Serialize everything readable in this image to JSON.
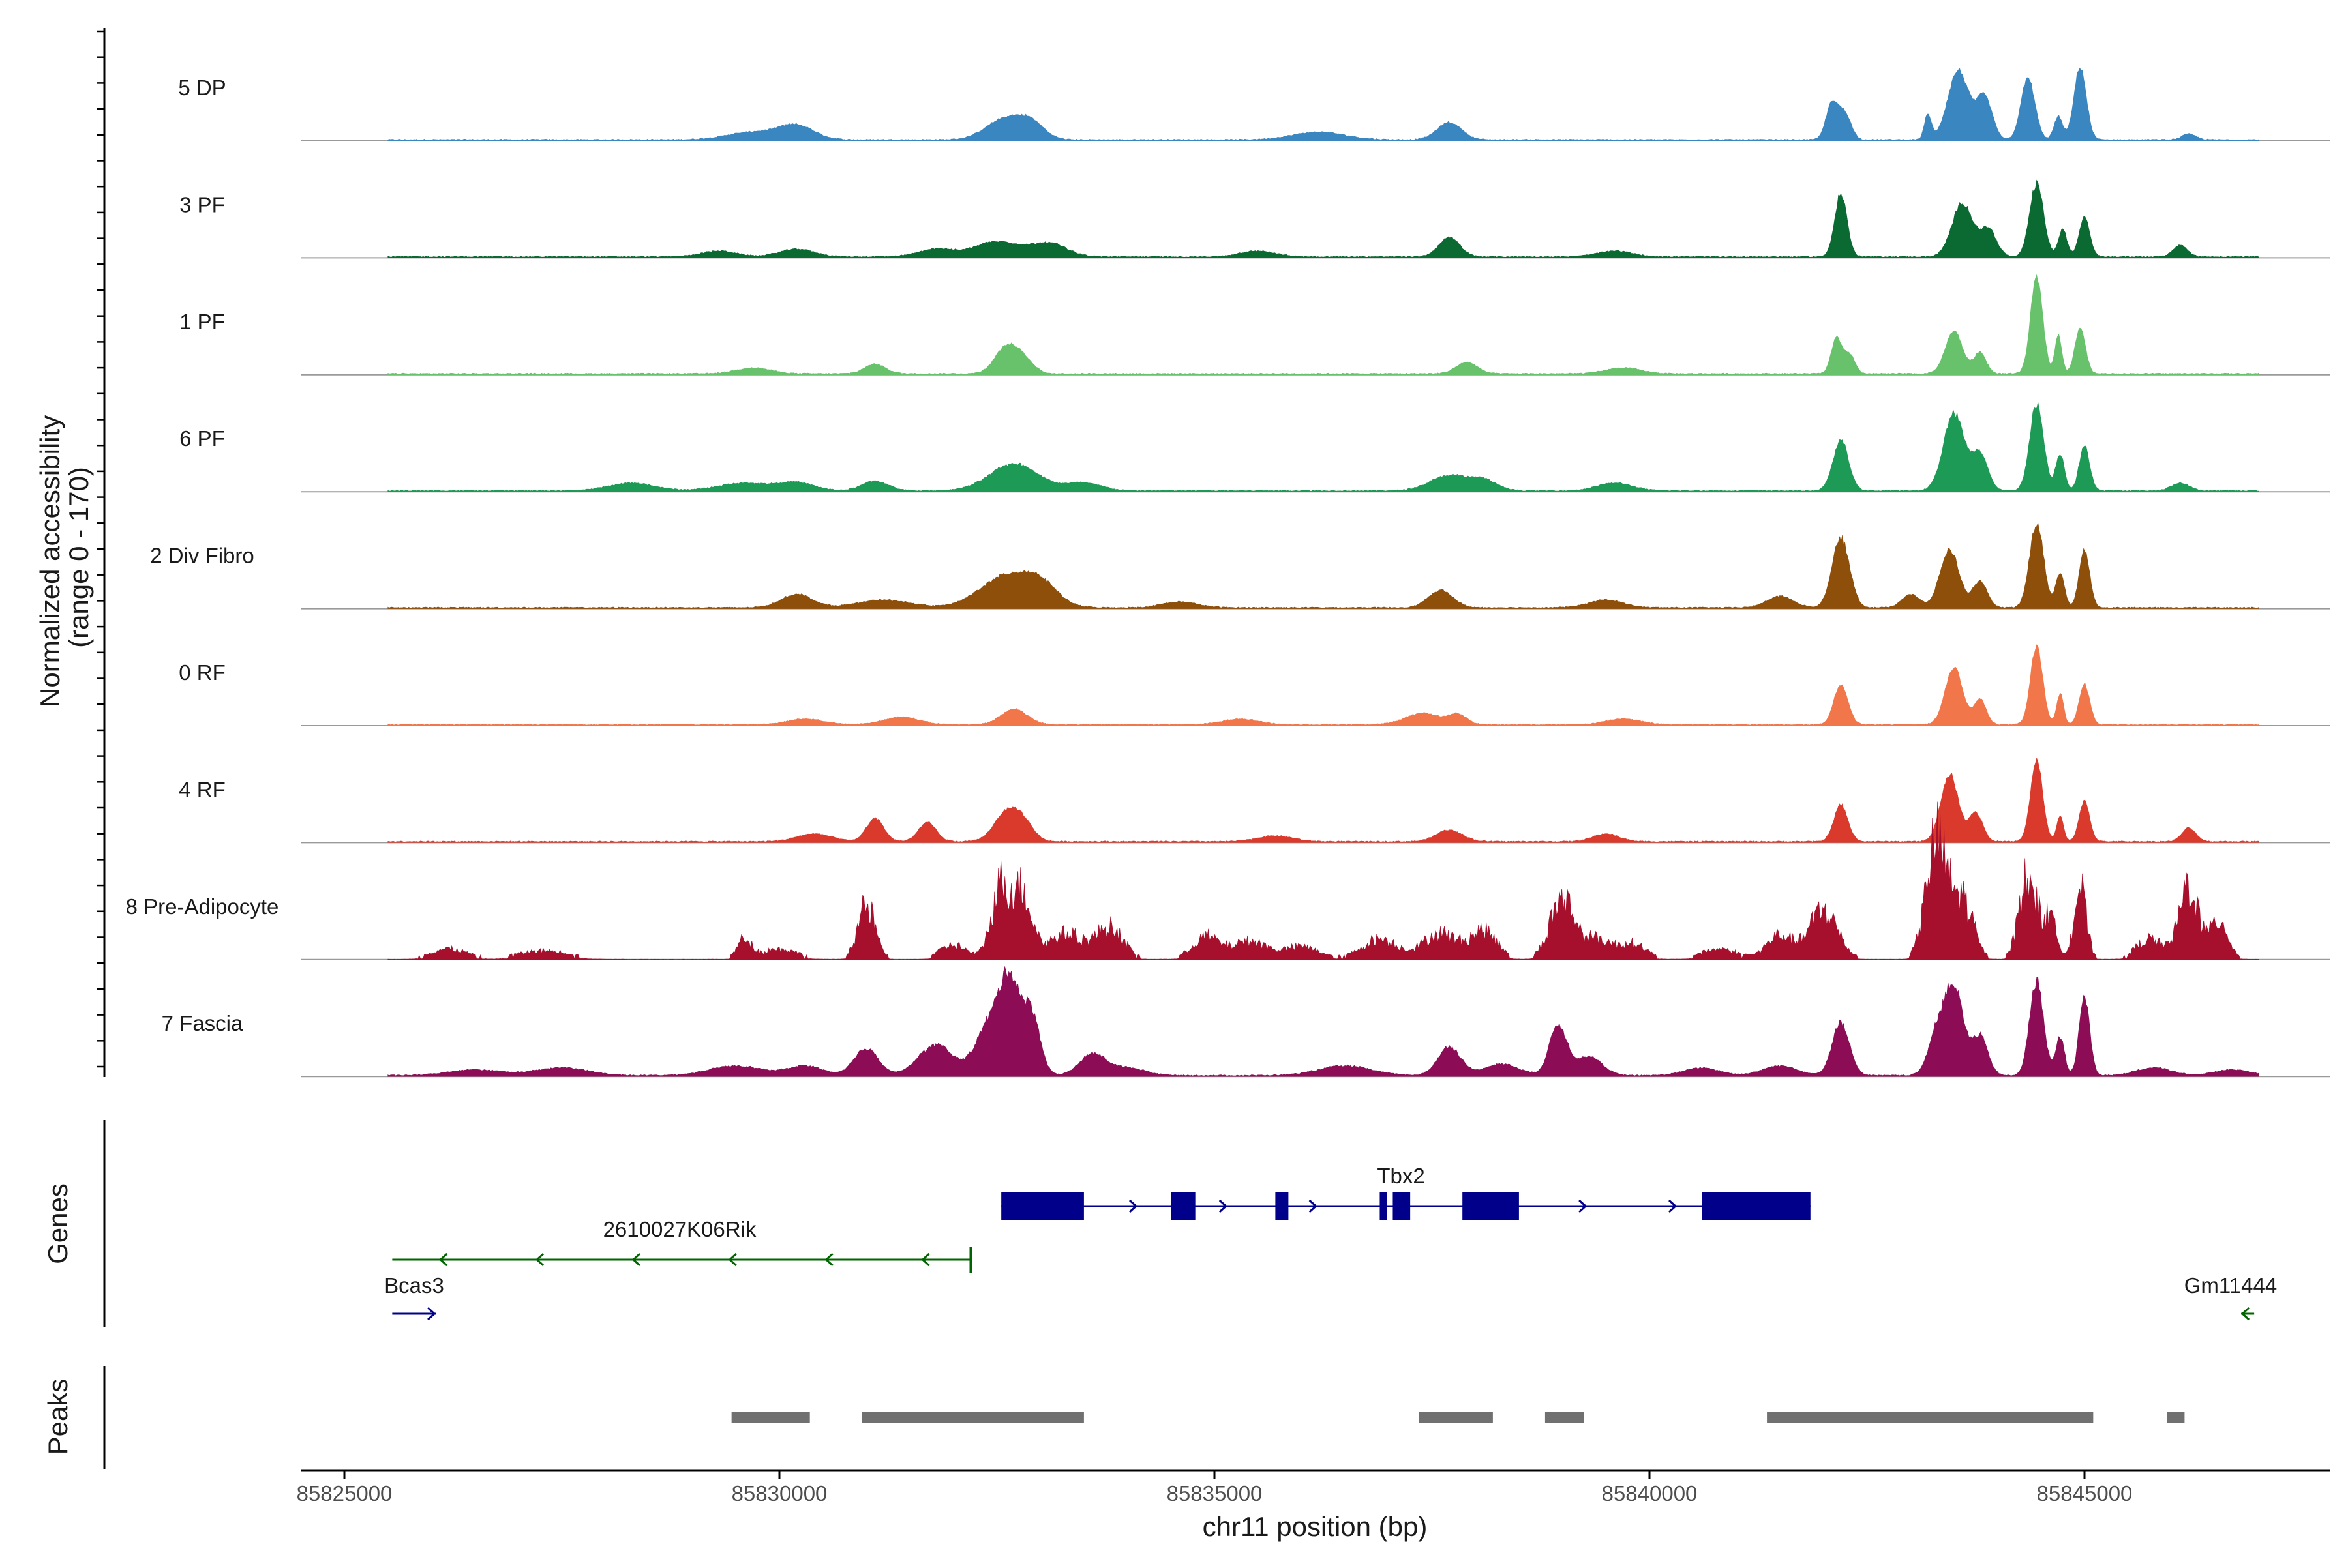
{
  "chart_data": {
    "type": "area",
    "chromosome": "chr11",
    "xlabel": "chr11 position (bp)",
    "xlim": [
      85824500,
      85848000
    ],
    "x_ticks": [
      85825000,
      85830000,
      85835000,
      85840000,
      85845000
    ],
    "x_tick_labels": [
      "85825000",
      "85830000",
      "85835000",
      "85840000",
      "85845000"
    ],
    "coverage": {
      "ylabel_line1": "Normalized accessibility",
      "ylabel_line2": "(range 0 - 170)",
      "yrange": [
        0,
        170
      ],
      "bin_start": 85825500,
      "bin_end": 85847000,
      "series": [
        {
          "name": "5 DP",
          "label": "5 DP",
          "color": "#3a86c0",
          "noise": 0.04,
          "peaks": [
            [
              85829700,
              4,
              300
            ],
            [
              85830200,
              7,
              200
            ],
            [
              85832600,
              11,
              220
            ],
            [
              85832900,
              7,
              150
            ],
            [
              85836200,
              4,
              300
            ],
            [
              85837700,
              9,
              140
            ],
            [
              85842100,
              19,
              70
            ],
            [
              85842250,
              13,
              70
            ],
            [
              85843200,
              13,
              40
            ],
            [
              85843550,
              36,
              120
            ],
            [
              85843850,
              22,
              90
            ],
            [
              85844350,
              32,
              80
            ],
            [
              85844700,
              12,
              50
            ],
            [
              85844950,
              38,
              70
            ],
            [
              85846200,
              3,
              80
            ]
          ]
        },
        {
          "name": "3 PF",
          "label": "3 PF",
          "color": "#0b6a32",
          "noise": 0.05,
          "peaks": [
            [
              85829300,
              3,
              200
            ],
            [
              85830200,
              4,
              200
            ],
            [
              85831800,
              4,
              200
            ],
            [
              85832500,
              8,
              260
            ],
            [
              85833100,
              7,
              200
            ],
            [
              85835500,
              3,
              200
            ],
            [
              85837700,
              10,
              120
            ],
            [
              85839600,
              3,
              200
            ],
            [
              85842200,
              33,
              70
            ],
            [
              85843600,
              28,
              120
            ],
            [
              85843900,
              14,
              90
            ],
            [
              85844450,
              38,
              80
            ],
            [
              85844750,
              14,
              50
            ],
            [
              85845000,
              21,
              60
            ],
            [
              85846100,
              6,
              80
            ]
          ]
        },
        {
          "name": "1 PF",
          "label": "1 PF",
          "color": "#68c26b",
          "noise": 0.04,
          "peaks": [
            [
              85829700,
              3,
              200
            ],
            [
              85831100,
              5,
              120
            ],
            [
              85832600,
              13,
              130
            ],
            [
              85832800,
              7,
              120
            ],
            [
              85837900,
              6,
              120
            ],
            [
              85839700,
              3,
              200
            ],
            [
              85842150,
              19,
              60
            ],
            [
              85842300,
              10,
              60
            ],
            [
              85843500,
              22,
              100
            ],
            [
              85843800,
              11,
              70
            ],
            [
              85844450,
              50,
              70
            ],
            [
              85844700,
              20,
              40
            ],
            [
              85844950,
              24,
              60
            ]
          ]
        },
        {
          "name": "6 PF",
          "label": "6 PF",
          "color": "#1d9a55",
          "noise": 0.05,
          "peaks": [
            [
              85828300,
              4,
              260
            ],
            [
              85829600,
              4,
              300
            ],
            [
              85830200,
              4,
              200
            ],
            [
              85831100,
              5,
              150
            ],
            [
              85832700,
              14,
              280
            ],
            [
              85833500,
              4,
              200
            ],
            [
              85837700,
              8,
              220
            ],
            [
              85838100,
              5,
              150
            ],
            [
              85839600,
              4,
              200
            ],
            [
              85842200,
              26,
              90
            ],
            [
              85843500,
              40,
              120
            ],
            [
              85843800,
              19,
              90
            ],
            [
              85844450,
              45,
              80
            ],
            [
              85844720,
              19,
              50
            ],
            [
              85845000,
              23,
              60
            ],
            [
              85846100,
              4,
              100
            ]
          ]
        },
        {
          "name": "2 Div Fibro",
          "label": "2 Div Fibro",
          "color": "#8e4f0a",
          "noise": 0.05,
          "peaks": [
            [
              85830200,
              7,
              180
            ],
            [
              85831200,
              4,
              300
            ],
            [
              85832600,
              16,
              300
            ],
            [
              85833000,
              10,
              200
            ],
            [
              85834600,
              3,
              200
            ],
            [
              85837600,
              9,
              140
            ],
            [
              85839500,
              4,
              200
            ],
            [
              85841500,
              6,
              150
            ],
            [
              85842200,
              36,
              100
            ],
            [
              85843000,
              7,
              100
            ],
            [
              85843450,
              30,
              110
            ],
            [
              85843800,
              14,
              80
            ],
            [
              85844450,
              44,
              80
            ],
            [
              85844720,
              18,
              50
            ],
            [
              85845000,
              30,
              60
            ]
          ]
        },
        {
          "name": "0 RF",
          "label": "0 RF",
          "color": "#f1774a",
          "noise": 0.04,
          "peaks": [
            [
              85830300,
              3,
              200
            ],
            [
              85831400,
              4,
              200
            ],
            [
              85832700,
              8,
              150
            ],
            [
              85835300,
              3,
              200
            ],
            [
              85837400,
              6,
              200
            ],
            [
              85837800,
              5,
              100
            ],
            [
              85839700,
              3,
              200
            ],
            [
              85842200,
              21,
              80
            ],
            [
              85843500,
              30,
              100
            ],
            [
              85843800,
              13,
              70
            ],
            [
              85844450,
              41,
              70
            ],
            [
              85844720,
              16,
              40
            ],
            [
              85845000,
              21,
              60
            ]
          ]
        },
        {
          "name": "4 RF",
          "label": "4 RF",
          "color": "#d93a2c",
          "noise": 0.04,
          "peaks": [
            [
              85830400,
              4,
              200
            ],
            [
              85831100,
              12,
              100
            ],
            [
              85831700,
              10,
              100
            ],
            [
              85832600,
              14,
              140
            ],
            [
              85832800,
              9,
              120
            ],
            [
              85835700,
              3,
              200
            ],
            [
              85837700,
              6,
              150
            ],
            [
              85839500,
              4,
              150
            ],
            [
              85842200,
              19,
              80
            ],
            [
              85843450,
              35,
              100
            ],
            [
              85843750,
              15,
              80
            ],
            [
              85844450,
              42,
              70
            ],
            [
              85844720,
              13,
              40
            ],
            [
              85845000,
              21,
              60
            ],
            [
              85846200,
              7,
              80
            ]
          ]
        },
        {
          "name": "8 Pre-Adipocyte",
          "label": "8 Pre-Adipocyte",
          "color": "#a6102d",
          "noise": 0.35,
          "peaks": [
            [
              85826200,
              5,
              200
            ],
            [
              85827300,
              4,
              300
            ],
            [
              85829600,
              10,
              80
            ],
            [
              85830000,
              5,
              200
            ],
            [
              85831000,
              27,
              100
            ],
            [
              85832000,
              7,
              150
            ],
            [
              85832550,
              37,
              110
            ],
            [
              85832800,
              32,
              110
            ],
            [
              85833300,
              13,
              200
            ],
            [
              85833800,
              16,
              150
            ],
            [
              85834900,
              11,
              150
            ],
            [
              85835400,
              9,
              200
            ],
            [
              85836000,
              6,
              200
            ],
            [
              85836900,
              10,
              200
            ],
            [
              85837600,
              13,
              200
            ],
            [
              85838100,
              14,
              150
            ],
            [
              85839000,
              31,
              140
            ],
            [
              85839400,
              10,
              150
            ],
            [
              85839800,
              8,
              150
            ],
            [
              85840800,
              5,
              200
            ],
            [
              85841500,
              12,
              150
            ],
            [
              85842000,
              25,
              160
            ],
            [
              85843300,
              60,
              120
            ],
            [
              85843600,
              30,
              120
            ],
            [
              85844350,
              42,
              100
            ],
            [
              85844600,
              20,
              80
            ],
            [
              85844950,
              36,
              70
            ],
            [
              85845750,
              10,
              150
            ],
            [
              85846200,
              38,
              110
            ],
            [
              85846550,
              20,
              100
            ]
          ]
        },
        {
          "name": "7 Fascia",
          "label": "7 Fascia",
          "color": "#8c0d56",
          "noise": 0.07,
          "peaks": [
            [
              85826500,
              3,
              300
            ],
            [
              85827500,
              4,
              300
            ],
            [
              85829500,
              5,
              300
            ],
            [
              85830300,
              5,
              200
            ],
            [
              85831000,
              14,
              140
            ],
            [
              85831800,
              16,
              200
            ],
            [
              85832400,
              25,
              150
            ],
            [
              85832650,
              47,
              120
            ],
            [
              85832900,
              30,
              100
            ],
            [
              85833600,
              11,
              150
            ],
            [
              85834000,
              4,
              200
            ],
            [
              85836500,
              5,
              300
            ],
            [
              85837700,
              15,
              130
            ],
            [
              85838300,
              6,
              200
            ],
            [
              85838950,
              26,
              100
            ],
            [
              85839300,
              10,
              150
            ],
            [
              85840600,
              4,
              200
            ],
            [
              85841500,
              5,
              200
            ],
            [
              85842200,
              27,
              100
            ],
            [
              85843300,
              20,
              100
            ],
            [
              85843500,
              45,
              110
            ],
            [
              85843800,
              20,
              90
            ],
            [
              85844450,
              49,
              80
            ],
            [
              85844720,
              20,
              50
            ],
            [
              85845000,
              41,
              60
            ],
            [
              85845800,
              4,
              200
            ],
            [
              85846700,
              3,
              200
            ]
          ]
        }
      ]
    },
    "genes": {
      "title": "Genes",
      "items": [
        {
          "name": "Tbx2",
          "label": "Tbx2",
          "strand": "+",
          "color": "#00008b",
          "start": 85832550,
          "end": 85841850,
          "exons": [
            [
              85832550,
              85833500
            ],
            [
              85834500,
              85834780
            ],
            [
              85835700,
              85835850
            ],
            [
              85836900,
              85836980
            ],
            [
              85837050,
              85837250
            ],
            [
              85837850,
              85838500
            ],
            [
              85840600,
              85841850
            ]
          ]
        },
        {
          "name": "2610027K06Rik",
          "label": "2610027K06Rik",
          "strand": "-",
          "color": "#006400",
          "start": 85825550,
          "end": 85832200,
          "exons": []
        },
        {
          "name": "Bcas3",
          "label": "Bcas3",
          "strand": "+",
          "color": "#00008b",
          "start": 85825550,
          "end": 85826050,
          "exons": []
        },
        {
          "name": "Gm11444",
          "label": "Gm11444",
          "strand": "-",
          "color": "#006400",
          "start": 85846800,
          "end": 85846950,
          "exons": []
        }
      ]
    },
    "peaks": {
      "title": "Peaks",
      "color": "#707070",
      "regions": [
        [
          85829450,
          85830350
        ],
        [
          85830950,
          85833500
        ],
        [
          85837350,
          85838200
        ],
        [
          85838800,
          85839250
        ],
        [
          85841350,
          85845100
        ],
        [
          85845950,
          85846150
        ]
      ]
    }
  }
}
